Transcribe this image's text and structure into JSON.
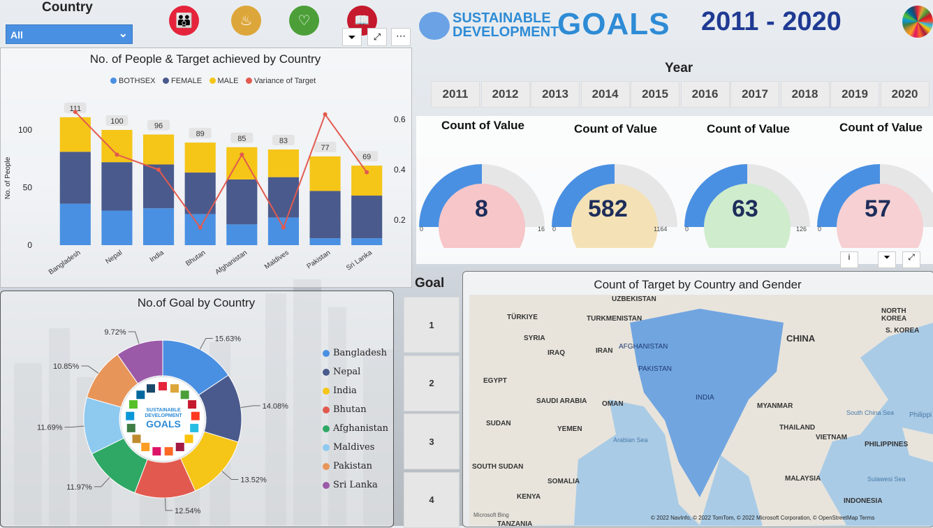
{
  "header": {
    "country_filter_label": "Country",
    "country_filter_value": "All",
    "sdg_line1": "SUSTAINABLE",
    "sdg_line2": "DEVELOPMENT",
    "sdg_goals": "GOALS",
    "year_range": "2011 - 2020"
  },
  "year_slicer": {
    "title": "Year",
    "years": [
      "2011",
      "2012",
      "2013",
      "2014",
      "2015",
      "2016",
      "2017",
      "2018",
      "2019",
      "2020"
    ]
  },
  "kpis": [
    {
      "title": "Count of Value",
      "value": "8",
      "min": "0",
      "max": "16",
      "fraction": 0.5,
      "circle_color": "#f6c6c9"
    },
    {
      "title": "Count of Value",
      "value": "582",
      "min": "0",
      "max": "1164",
      "fraction": 0.5,
      "circle_color": "#f4e2b6"
    },
    {
      "title": "Count of Value",
      "value": "63",
      "min": "0",
      "max": "126",
      "fraction": 0.5,
      "circle_color": "#cfeccd"
    },
    {
      "title": "Count of Value",
      "value": "57",
      "min": "0",
      "max": "114",
      "fraction": 0.5,
      "circle_color": "#f6d0d2"
    }
  ],
  "goal_slicer": {
    "title": "Goal",
    "goals": [
      "1",
      "2",
      "3",
      "4"
    ]
  },
  "map": {
    "title": "Count of Target by Country and Gender",
    "labels": [
      "UZBEKISTAN",
      "TÜRKIYE",
      "TURKMENISTAN",
      "NORTH KOREA",
      "SYRIA",
      "S. KOREA",
      "IRAQ",
      "IRAN",
      "AFGHANISTAN",
      "CHINA",
      "PAKISTAN",
      "EGYPT",
      "SAUDI ARABIA",
      "OMAN",
      "INDIA",
      "MYANMAR",
      "SUDAN",
      "YEMEN",
      "THAILAND",
      "VIETNAM",
      "PHILIPPINES",
      "SOUTH SUDAN",
      "SOMALIA",
      "MALAYSIA",
      "KENYA",
      "INDONESIA",
      "TANZANIA",
      "Philippi"
    ],
    "seas": [
      "Arabian Sea",
      "South China Sea",
      "Sulawesi Sea"
    ],
    "attribution": "© 2022 NavInfo, © 2022 TomTom, © 2022 Microsoft Corporation, © OpenStreetMap  Terms",
    "bing": "Microsoft Bing"
  },
  "pie": {
    "title": "No.of Goal by Country",
    "center_line1": "SUSTAINABLE",
    "center_line2": "DEVELOPMENT",
    "center_line3": "GOALS"
  },
  "colors": {
    "bothsex": "#4a90e2",
    "female": "#4a5a8c",
    "male": "#f5c518",
    "variance": "#e25a4f",
    "accent": "#1f3a93"
  },
  "chart_data": [
    {
      "type": "bar",
      "title": "No. of People & Target achieved by Country",
      "ylabel": "No. of People",
      "categories": [
        "Bangladesh",
        "Nepal",
        "India",
        "Bhutan",
        "Afghanistan",
        "Maldives",
        "Pakistan",
        "Sri Lanka"
      ],
      "totals": [
        111,
        100,
        96,
        89,
        85,
        83,
        77,
        69
      ],
      "series": [
        {
          "name": "BOTHSEX",
          "values": [
            36,
            30,
            32,
            27,
            18,
            24,
            6,
            6
          ]
        },
        {
          "name": "FEMALE",
          "values": [
            45,
            42,
            38,
            36,
            39,
            35,
            41,
            37
          ]
        },
        {
          "name": "MALE",
          "values": [
            30,
            28,
            26,
            26,
            28,
            24,
            30,
            26
          ]
        },
        {
          "name": "Variance of Target",
          "axis": "secondary",
          "values": [
            0.63,
            0.46,
            0.4,
            0.17,
            0.46,
            0.17,
            0.62,
            0.39
          ]
        }
      ],
      "ylim": [
        0,
        120
      ],
      "y_ticks": [
        "0",
        "50",
        "100"
      ],
      "y2lim": [
        0.1,
        0.65
      ],
      "y2_ticks": [
        "0.2",
        "0.4",
        "0.6"
      ]
    },
    {
      "type": "pie",
      "title": "No.of Goal by Country",
      "categories": [
        "Bangladesh",
        "Nepal",
        "India",
        "Bhutan",
        "Afghanistan",
        "Maldives",
        "Pakistan",
        "Sri Lanka"
      ],
      "values": [
        15.63,
        14.08,
        13.52,
        12.54,
        11.97,
        11.69,
        10.85,
        9.72
      ],
      "labels": [
        "15.63%",
        "14.08%",
        "13.52%",
        "12.54%",
        "11.97%",
        "11.69%",
        "10.85%",
        "9.72%"
      ],
      "colors": [
        "#4a90e2",
        "#4a5a8c",
        "#f5c518",
        "#e25a4f",
        "#2fa866",
        "#8ec9f0",
        "#e8955a",
        "#9b5aa8"
      ]
    }
  ]
}
